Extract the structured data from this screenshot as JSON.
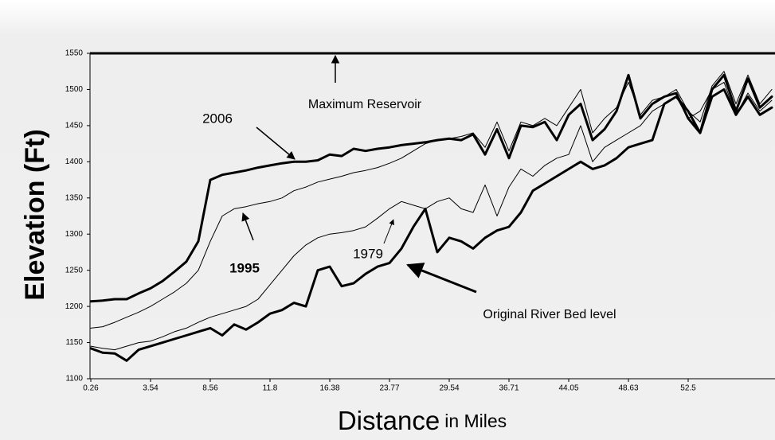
{
  "chart_data": {
    "type": "line",
    "y_label": "Elevation (Ft)",
    "x_label": {
      "main": "Distance",
      "sub": "in Miles"
    },
    "reference_line": {
      "label": "Maximum Reservoir",
      "value": 1550
    },
    "categories": [
      "0.26",
      null,
      null,
      null,
      null,
      "3.54",
      null,
      null,
      null,
      null,
      "8.56",
      null,
      null,
      null,
      null,
      "11.8",
      null,
      null,
      null,
      null,
      "16.38",
      null,
      null,
      null,
      null,
      "23.77",
      null,
      null,
      null,
      null,
      "29.54",
      null,
      null,
      null,
      null,
      "36.71",
      null,
      null,
      null,
      null,
      "44.05",
      null,
      null,
      null,
      null,
      "48.63",
      null,
      null,
      null,
      null,
      "52.5",
      null,
      null,
      null,
      null,
      null,
      null,
      null
    ],
    "ylim": [
      1100,
      1550
    ],
    "yticks": [
      1100,
      1150,
      1200,
      1250,
      1300,
      1350,
      1400,
      1450,
      1500,
      1550
    ],
    "grid": false,
    "series": [
      {
        "name": "2006",
        "color": "#000000",
        "line_width": 3,
        "values": [
          1207,
          1208,
          1210,
          1210,
          1218,
          1225,
          1235,
          1248,
          1262,
          1290,
          1375,
          1382,
          1385,
          1388,
          1392,
          1395,
          1398,
          1400,
          1400,
          1402,
          1410,
          1408,
          1418,
          1415,
          1418,
          1420,
          1423,
          1425,
          1427,
          1430,
          1432,
          1430,
          1438,
          1410,
          1445,
          1405,
          1450,
          1448,
          1455,
          1430,
          1465,
          1480,
          1430,
          1445,
          1470,
          1520,
          1460,
          1480,
          1490,
          1495,
          1460,
          1440,
          1500,
          1520,
          1470,
          1515,
          1475,
          1490
        ]
      },
      {
        "name": "1995",
        "color": "#000000",
        "line_width": 1,
        "values": [
          1170,
          1172,
          1178,
          1185,
          1192,
          1200,
          1210,
          1220,
          1232,
          1250,
          1290,
          1325,
          1335,
          1338,
          1342,
          1345,
          1350,
          1360,
          1365,
          1372,
          1376,
          1380,
          1385,
          1388,
          1392,
          1398,
          1405,
          1415,
          1425,
          1430,
          1432,
          1435,
          1440,
          1420,
          1455,
          1415,
          1455,
          1450,
          1460,
          1450,
          1475,
          1500,
          1440,
          1460,
          1475,
          1510,
          1465,
          1485,
          1490,
          1500,
          1470,
          1455,
          1505,
          1525,
          1480,
          1520,
          1480,
          1500
        ]
      },
      {
        "name": "1979",
        "color": "#000000",
        "line_width": 1,
        "values": [
          1145,
          1142,
          1140,
          1145,
          1150,
          1152,
          1158,
          1165,
          1170,
          1178,
          1185,
          1190,
          1195,
          1200,
          1210,
          1230,
          1250,
          1270,
          1285,
          1295,
          1300,
          1302,
          1305,
          1310,
          1322,
          1335,
          1345,
          1340,
          1335,
          1345,
          1350,
          1335,
          1330,
          1368,
          1325,
          1365,
          1390,
          1380,
          1395,
          1405,
          1410,
          1450,
          1400,
          1420,
          1430,
          1440,
          1450,
          1470,
          1480,
          1490,
          1460,
          1470,
          1500,
          1510,
          1465,
          1495,
          1470,
          1485
        ]
      },
      {
        "name": "Original River Bed level",
        "color": "#000000",
        "line_width": 3,
        "values": [
          1142,
          1136,
          1135,
          1125,
          1140,
          1145,
          1150,
          1155,
          1160,
          1165,
          1170,
          1160,
          1175,
          1168,
          1178,
          1190,
          1195,
          1205,
          1200,
          1250,
          1255,
          1228,
          1232,
          1245,
          1255,
          1260,
          1280,
          1310,
          1335,
          1275,
          1295,
          1290,
          1280,
          1295,
          1305,
          1310,
          1330,
          1360,
          1370,
          1380,
          1390,
          1400,
          1390,
          1395,
          1405,
          1420,
          1425,
          1430,
          1480,
          1490,
          1470,
          1440,
          1490,
          1500,
          1465,
          1490,
          1465,
          1475
        ]
      }
    ]
  }
}
